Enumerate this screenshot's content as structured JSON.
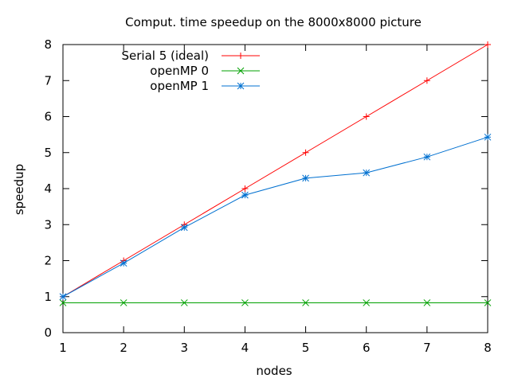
{
  "chart_data": {
    "type": "line",
    "title": "Comput. time speedup on the 8000x8000 picture",
    "xlabel": "nodes",
    "ylabel": "speedup",
    "xlim": [
      1,
      8
    ],
    "ylim": [
      0,
      8
    ],
    "x_ticks": [
      1,
      2,
      3,
      4,
      5,
      6,
      7,
      8
    ],
    "y_ticks": [
      0,
      1,
      2,
      3,
      4,
      5,
      6,
      7,
      8
    ],
    "grid": false,
    "legend_position": "top-left",
    "x": [
      1,
      2,
      3,
      4,
      5,
      6,
      7,
      8
    ],
    "series": [
      {
        "name": "Serial 5 (ideal)",
        "values": [
          1,
          2,
          3,
          4,
          5,
          6,
          7,
          8
        ],
        "color": "#ff0000",
        "marker": "plus"
      },
      {
        "name": "openMP 0",
        "values": [
          0.83,
          0.83,
          0.83,
          0.83,
          0.83,
          0.83,
          0.83,
          0.83
        ],
        "color": "#00a000",
        "marker": "cross"
      },
      {
        "name": "openMP 1",
        "values": [
          1.0,
          1.93,
          2.92,
          3.82,
          4.29,
          4.44,
          4.88,
          5.43
        ],
        "color": "#0070d0",
        "marker": "star"
      }
    ]
  }
}
